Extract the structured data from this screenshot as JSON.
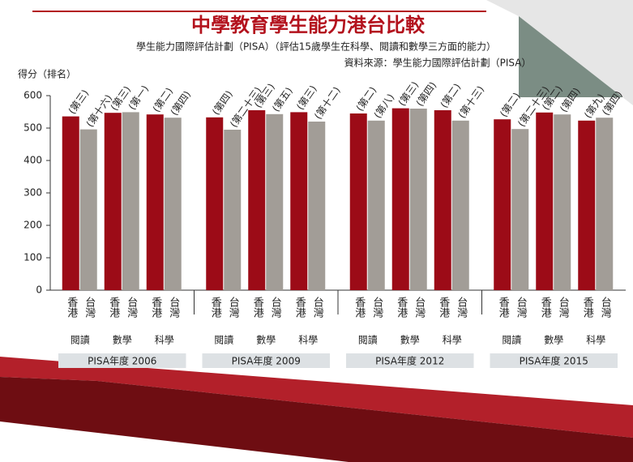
{
  "chart_data": {
    "type": "bar",
    "title": "中學教育學生能力港台比較",
    "subtitle": "學生能力國際評估計劃（PISA）（評估15歲學生在科學、閱讀和數學三方面的能力）",
    "source": "資料來源：學生能力國際評估計劃（PISA）",
    "y_label": "得分（排名）",
    "groups": [
      "PISA年度 2006",
      "PISA年度 2009",
      "PISA年度 2012",
      "PISA年度 2015"
    ],
    "categories": [
      "閱讀",
      "數學",
      "科學",
      "閱讀",
      "數學",
      "科學",
      "閱讀",
      "數學",
      "科學",
      "閱讀",
      "數學",
      "科學"
    ],
    "series": [
      {
        "name": "香港",
        "color": "#9c0b17",
        "values": [
          536,
          547,
          542,
          533,
          555,
          549,
          545,
          561,
          555,
          527,
          548,
          523
        ],
        "value_labels": [
          "(第三)",
          "(第三)",
          "(第二)",
          "(第四)",
          "(第三)",
          "(第三)",
          "(第二)",
          "(第三)",
          "(第二)",
          "(第二)",
          "(第二)",
          "(第九)"
        ]
      },
      {
        "name": "台灣",
        "color": "#a29d97",
        "values": [
          496,
          549,
          532,
          495,
          543,
          520,
          523,
          560,
          523,
          497,
          542,
          532
        ],
        "value_labels": [
          "(第十六)",
          "(第一)",
          "(第四)",
          "(第二十三)",
          "(第五)",
          "(第十二)",
          "(第八)",
          "(第四)",
          "(第十三)",
          "(第二十三)",
          "(第四)",
          "(第四)"
        ]
      }
    ],
    "ylim": [
      0,
      600
    ],
    "yticks": [
      0,
      100,
      200,
      300,
      400,
      500,
      600
    ],
    "grid": false
  }
}
